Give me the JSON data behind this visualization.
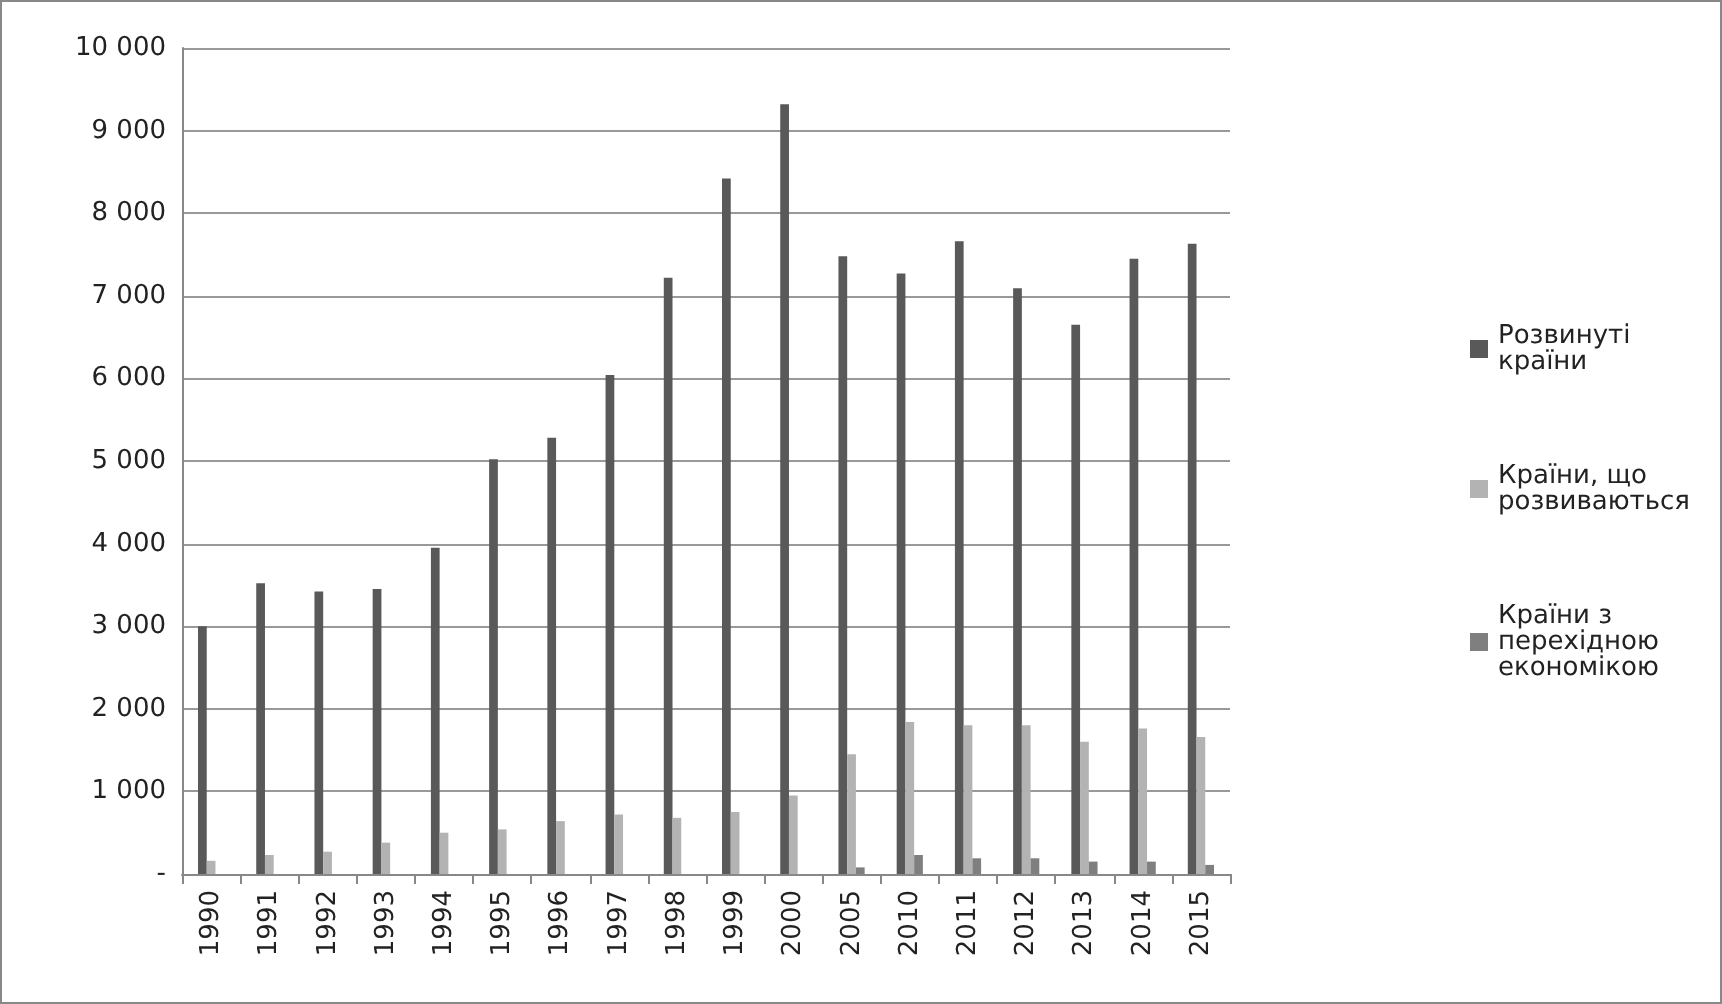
{
  "chart_data": {
    "type": "bar",
    "categories": [
      "1990",
      "1991",
      "1992",
      "1993",
      "1994",
      "1995",
      "1996",
      "1997",
      "1998",
      "1999",
      "2000",
      "2005",
      "2010",
      "2011",
      "2012",
      "2013",
      "2014",
      "2015"
    ],
    "series": [
      {
        "name": "Розвинуті країни",
        "color": "#595959",
        "values": [
          3000,
          3520,
          3420,
          3450,
          3950,
          5020,
          5280,
          6040,
          7220,
          8420,
          9320,
          7480,
          7270,
          7660,
          7090,
          6650,
          7450,
          7630
        ]
      },
      {
        "name": "Країни, що розвиваються",
        "color": "#b3b3b3",
        "values": [
          160,
          230,
          270,
          380,
          500,
          540,
          640,
          720,
          680,
          750,
          950,
          1450,
          1840,
          1800,
          1800,
          1600,
          1760,
          1660
        ]
      },
      {
        "name": "Країни з перехідною економікою",
        "color": "#7f7f7f",
        "values": [
          null,
          null,
          null,
          null,
          null,
          null,
          null,
          null,
          null,
          null,
          null,
          80,
          230,
          190,
          190,
          150,
          150,
          110
        ]
      }
    ],
    "ylim": [
      0,
      10000
    ],
    "yticks": [
      {
        "value": 0,
        "label": "-"
      },
      {
        "value": 1000,
        "label": "1 000"
      },
      {
        "value": 2000,
        "label": "2 000"
      },
      {
        "value": 3000,
        "label": "3 000"
      },
      {
        "value": 4000,
        "label": "4 000"
      },
      {
        "value": 5000,
        "label": "5 000"
      },
      {
        "value": 6000,
        "label": "6 000"
      },
      {
        "value": 7000,
        "label": "7 000"
      },
      {
        "value": 8000,
        "label": "8 000"
      },
      {
        "value": 9000,
        "label": "9 000"
      },
      {
        "value": 10000,
        "label": "10 000"
      }
    ],
    "grid": "y",
    "legend": "right"
  }
}
